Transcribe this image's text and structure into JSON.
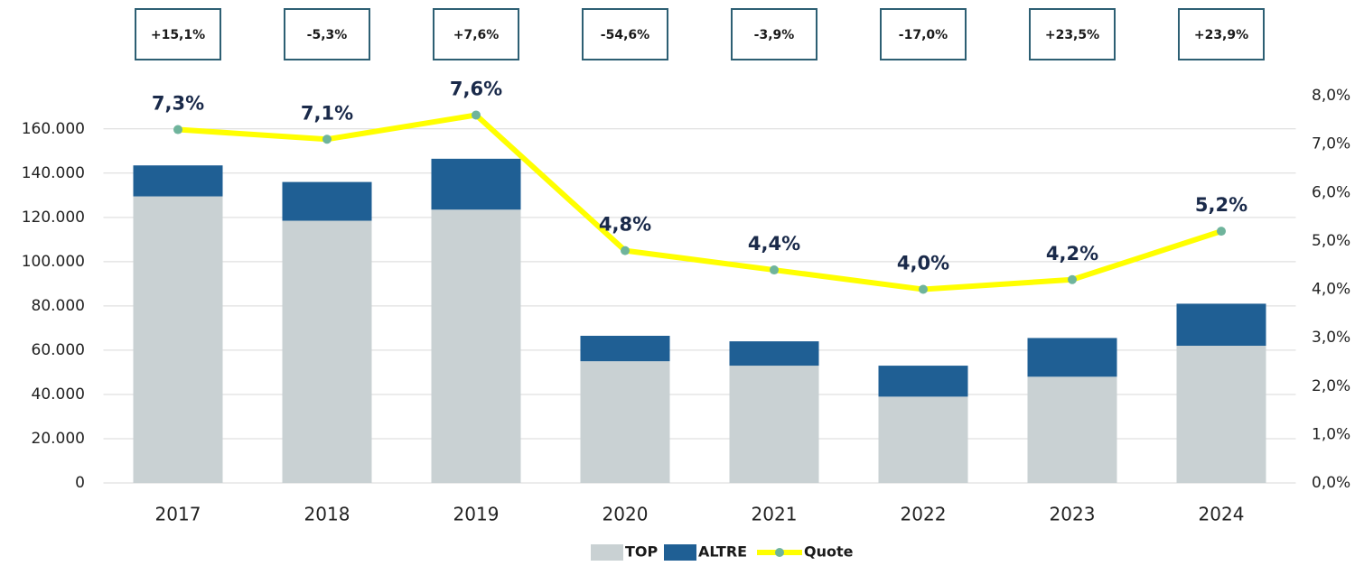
{
  "chart_data": {
    "type": "bar-line",
    "categories": [
      "2017",
      "2018",
      "2019",
      "2020",
      "2021",
      "2022",
      "2023",
      "2024"
    ],
    "series": [
      {
        "name": "TOP",
        "color": "#c9d1d3",
        "values": [
          129500,
          118500,
          123500,
          55000,
          53000,
          39000,
          48000,
          62000
        ]
      },
      {
        "name": "ALTRE",
        "color": "#1f5f94",
        "values": [
          14000,
          17500,
          23000,
          11500,
          11000,
          14000,
          17500,
          19000
        ]
      },
      {
        "name": "Quote",
        "color": "#ffff00",
        "marker_color": "#6fb49c",
        "axis": "y2",
        "values": [
          7.3,
          7.1,
          7.6,
          4.8,
          4.4,
          4.0,
          4.2,
          5.2
        ],
        "value_labels": [
          "7,3%",
          "7,1%",
          "7,6%",
          "4,8%",
          "4,4%",
          "4,0%",
          "4,2%",
          "5,2%"
        ]
      }
    ],
    "annotations": [
      "+15,1%",
      "-5,3%",
      "+7,6%",
      "-54,6%",
      "-3,9%",
      "-17,0%",
      "+23,5%",
      "+23,9%"
    ],
    "ylim": [
      0,
      175000
    ],
    "yticks": [
      0,
      {
        "value": 20000,
        "label": "20.000"
      },
      {
        "value": 40000,
        "label": "40.000"
      },
      {
        "value": 60000,
        "label": "60.000"
      },
      {
        "value": 80000,
        "label": "80.000"
      },
      {
        "value": 100000,
        "label": "100.000"
      },
      {
        "value": 120000,
        "label": "120.000"
      },
      {
        "value": 140000,
        "label": "140.000"
      },
      {
        "value": 160000,
        "label": "160.000"
      }
    ],
    "y2lim": [
      0,
      8
    ],
    "y2ticks": [
      {
        "value": 0,
        "label": "0,0%"
      },
      {
        "value": 1,
        "label": "1,0%"
      },
      {
        "value": 2,
        "label": "2,0%"
      },
      {
        "value": 3,
        "label": "3,0%"
      },
      {
        "value": 4,
        "label": "4,0%"
      },
      {
        "value": 5,
        "label": "5,0%"
      },
      {
        "value": 6,
        "label": "6,0%"
      },
      {
        "value": 7,
        "label": "7,0%"
      },
      {
        "value": 8,
        "label": "8,0%"
      }
    ],
    "grid": true,
    "legend": "bottom"
  }
}
